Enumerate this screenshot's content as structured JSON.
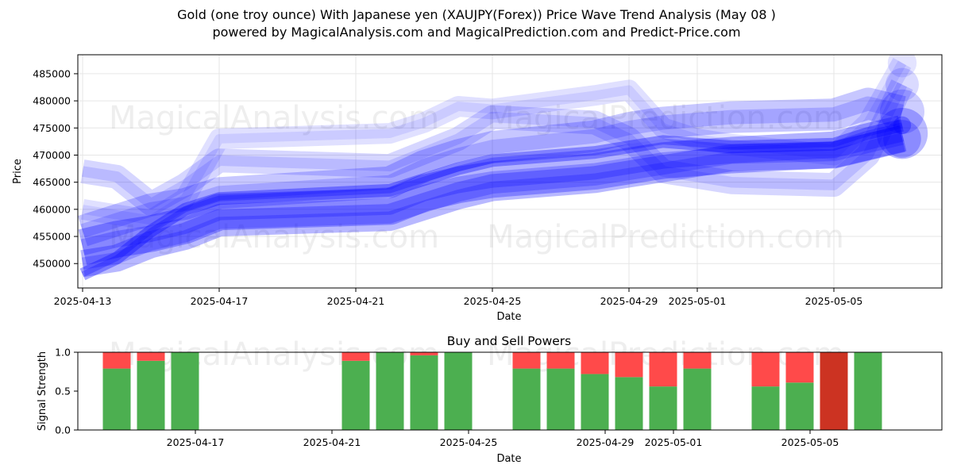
{
  "title_line1": "Gold (one troy ounce) With Japanese yen (XAUJPY(Forex)) Price Wave Trend Analysis (May 08 )",
  "title_line2": "powered by MagicalAnalysis.com and MagicalPrediction.com and Predict-Price.com",
  "watermarks": [
    "MagicalAnalysis.com",
    "MagicalPrediction.com"
  ],
  "colors": {
    "wave": "#0000ff",
    "buy": "#4caf50",
    "sell": "#ff4a4a",
    "sell_strong": "#cc3322",
    "grid": "#e6e6e6"
  },
  "chart_data": [
    {
      "type": "area",
      "title": "",
      "xlabel": "Date",
      "ylabel": "Price",
      "x_ticks": [
        "2025-04-13",
        "2025-04-17",
        "2025-04-21",
        "2025-04-25",
        "2025-04-29",
        "2025-05-01",
        "2025-05-05"
      ],
      "ylim": [
        445500,
        488500
      ],
      "y_ticks": [
        450000,
        455000,
        460000,
        465000,
        470000,
        475000,
        480000,
        485000
      ],
      "grid": true,
      "x": [
        "2025-04-13",
        "2025-04-14",
        "2025-04-15",
        "2025-04-16",
        "2025-04-17",
        "2025-04-22",
        "2025-04-23",
        "2025-04-24",
        "2025-04-25",
        "2025-04-28",
        "2025-04-29",
        "2025-04-30",
        "2025-05-01",
        "2025-05-02",
        "2025-05-05",
        "2025-05-06",
        "2025-05-07"
      ],
      "series": [
        {
          "values": [
            453000,
            454500,
            455500,
            457000,
            459500,
            460500,
            463000,
            464500,
            465500,
            467000,
            468000,
            469000,
            469500,
            470000,
            471000,
            472500,
            474000
          ]
        },
        {
          "values": [
            450000,
            451000,
            453500,
            455000,
            457500,
            458500,
            460500,
            462500,
            464000,
            465500,
            466500,
            467500,
            468500,
            469500,
            470000,
            471500,
            473000
          ]
        },
        {
          "values": [
            456000,
            458000,
            460000,
            461000,
            463000,
            465000,
            468000,
            470000,
            471500,
            473500,
            475000,
            476000,
            476500,
            477000,
            477500,
            479500,
            478000
          ]
        },
        {
          "values": [
            460000,
            459000,
            458000,
            462000,
            473000,
            474000,
            476000,
            479000,
            478500,
            481000,
            482000,
            475000,
            473000,
            472000,
            470000,
            476000,
            487000
          ]
        },
        {
          "values": [
            467000,
            466000,
            461000,
            464500,
            469000,
            468000,
            470500,
            473000,
            477000,
            476000,
            473000,
            467000,
            466000,
            465000,
            464500,
            470000,
            483000
          ]
        },
        {
          "values": [
            448000,
            451000,
            456000,
            460000,
            462000,
            463500,
            465500,
            467500,
            469000,
            470500,
            471500,
            472500,
            472000,
            471500,
            472000,
            474000,
            475500
          ]
        }
      ]
    },
    {
      "type": "bar",
      "title": "Buy and Sell Powers",
      "xlabel": "Date",
      "ylabel": "Signal Strength",
      "ylim": [
        0,
        1
      ],
      "y_ticks": [
        "0.0",
        "0.5",
        "1.0"
      ],
      "x_ticks": [
        "2025-04-17",
        "2025-04-21",
        "2025-04-25",
        "2025-04-29",
        "2025-05-01",
        "2025-05-05"
      ],
      "categories": [
        "2025-04-14",
        "2025-04-15",
        "2025-04-16",
        "2025-04-21",
        "2025-04-22",
        "2025-04-23",
        "2025-04-24",
        "2025-04-26",
        "2025-04-27",
        "2025-04-28",
        "2025-04-29",
        "2025-04-30",
        "2025-05-01",
        "2025-05-03",
        "2025-05-04",
        "2025-05-05",
        "2025-05-06"
      ],
      "series": [
        {
          "name": "Buy",
          "values": [
            0.79,
            0.89,
            1.0,
            0.89,
            1.0,
            0.96,
            1.0,
            0.79,
            0.79,
            0.72,
            0.68,
            0.56,
            0.79,
            0.56,
            0.61,
            0.0,
            1.0
          ]
        },
        {
          "name": "Sell",
          "values": [
            0.21,
            0.11,
            0.0,
            0.11,
            0.0,
            0.04,
            0.0,
            0.21,
            0.21,
            0.28,
            0.32,
            0.44,
            0.21,
            0.44,
            0.39,
            1.0,
            0.0
          ]
        }
      ]
    }
  ]
}
